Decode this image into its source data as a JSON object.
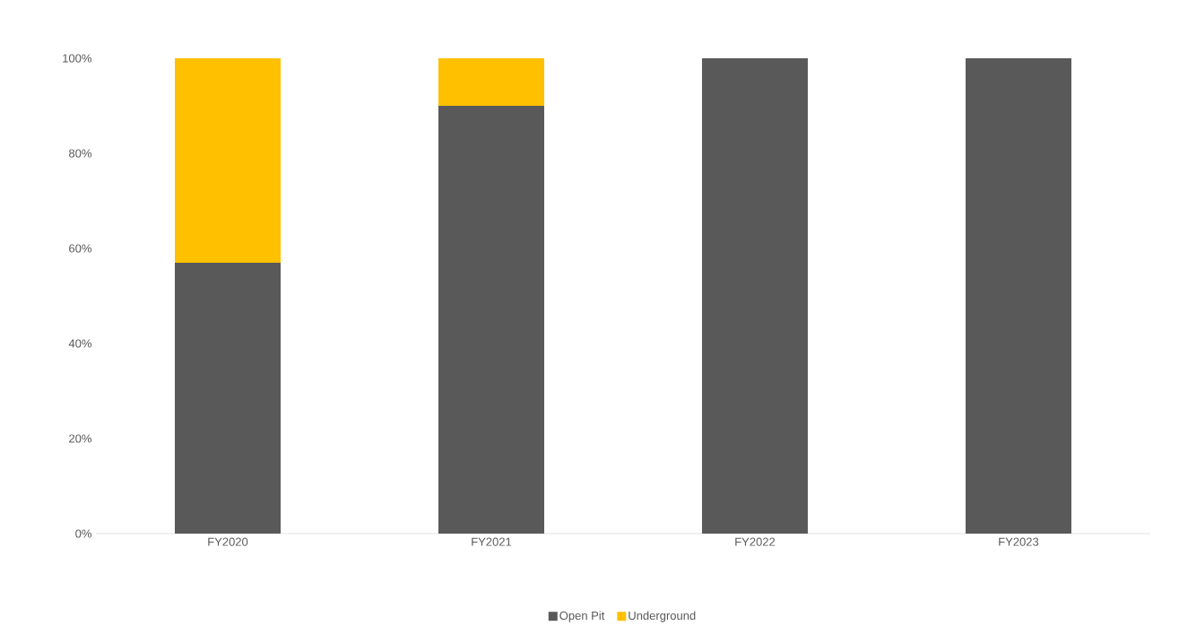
{
  "chart_data": {
    "type": "bar",
    "stacked": true,
    "categories": [
      "FY2020",
      "FY2021",
      "FY2022",
      "FY2023"
    ],
    "series": [
      {
        "name": "Open Pit",
        "color": "#595959",
        "values": [
          57,
          90,
          100,
          100
        ]
      },
      {
        "name": "Underground",
        "color": "#ffc000",
        "values": [
          43,
          10,
          0,
          0
        ]
      }
    ],
    "ylim": [
      0,
      100
    ],
    "yticks": [
      {
        "value": 0,
        "label": "0%"
      },
      {
        "value": 20,
        "label": "20%"
      },
      {
        "value": 40,
        "label": "40%"
      },
      {
        "value": 60,
        "label": "60%"
      },
      {
        "value": 80,
        "label": "80%"
      },
      {
        "value": 100,
        "label": "100%"
      }
    ],
    "grid": false,
    "legend": "bottom"
  }
}
